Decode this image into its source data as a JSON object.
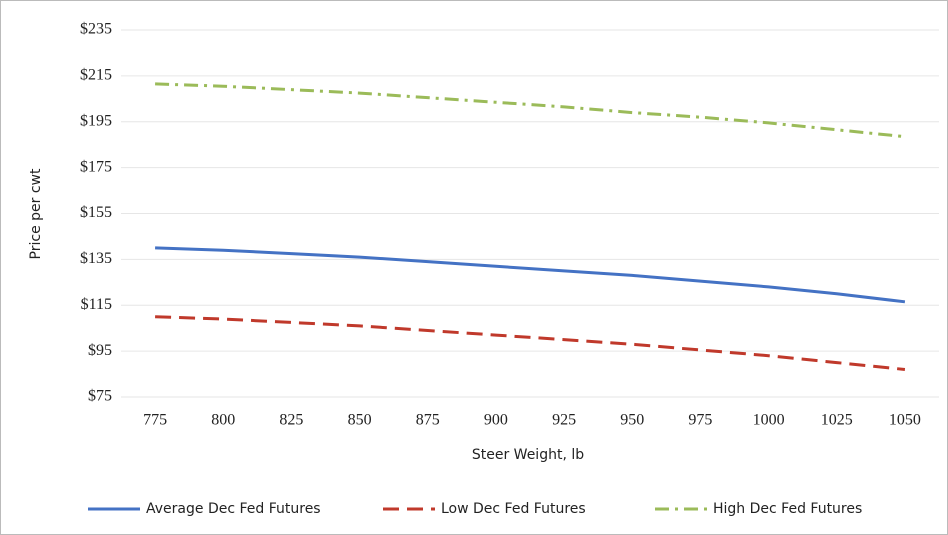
{
  "chart_data": {
    "type": "line",
    "x_label": "Steer Weight, lb",
    "y_label": "Price per cwt",
    "categories": [
      "775",
      "800",
      "825",
      "850",
      "875",
      "900",
      "925",
      "950",
      "975",
      "1000",
      "1025",
      "1050"
    ],
    "series": [
      {
        "name": "Average Dec Fed Futures",
        "color": "#4472c4",
        "dash": "solid",
        "values": [
          140,
          139,
          137.5,
          136,
          134,
          132,
          130,
          128,
          125.5,
          123,
          120,
          116.5
        ]
      },
      {
        "name": "Low Dec Fed Futures",
        "color": "#c0392b",
        "dash": "dash",
        "values": [
          110,
          109,
          107.5,
          106,
          104,
          102,
          100,
          98,
          95.5,
          93,
          90,
          87
        ]
      },
      {
        "name": "High Dec Fed Futures",
        "color": "#9bbb59",
        "dash": "dashdot",
        "values": [
          211.5,
          210.5,
          209,
          207.5,
          205.5,
          203.5,
          201.5,
          199,
          197,
          194.5,
          191.5,
          188.5
        ]
      }
    ],
    "ylim": [
      75,
      235
    ],
    "yticks": [
      {
        "value": 75,
        "label": "$75"
      },
      {
        "value": 95,
        "label": "$95"
      },
      {
        "value": 115,
        "label": "$115"
      },
      {
        "value": 135,
        "label": "$135"
      },
      {
        "value": 155,
        "label": "$155"
      },
      {
        "value": 175,
        "label": "$175"
      },
      {
        "value": 195,
        "label": "$195"
      },
      {
        "value": 215,
        "label": "$215"
      },
      {
        "value": 235,
        "label": "$235"
      }
    ],
    "grid": true,
    "legend": "bottom"
  }
}
